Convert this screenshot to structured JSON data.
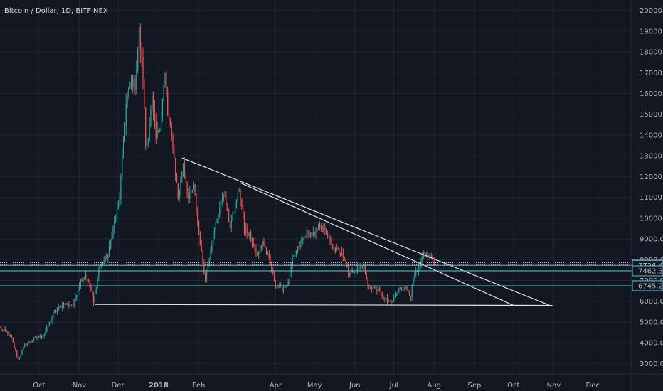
{
  "chart_data": {
    "type": "candlestick",
    "title": "Bitcoin / Dollar, 1D, BITFINEX",
    "ylim": [
      2500,
      20500
    ],
    "y_ticks": [
      3000,
      4000,
      5000,
      6000,
      7000,
      8000,
      9000,
      10000,
      11000,
      12000,
      13000,
      14000,
      15000,
      16000,
      17000,
      18000,
      19000,
      20000
    ],
    "y_tick_labels": [
      "3000.0",
      "4000.0",
      "5000.0",
      "6000.0",
      "7000.0",
      "8000.0",
      "9000.0",
      "10000.0",
      "11000.0",
      "12000.0",
      "13000.0",
      "14000.0",
      "15000.0",
      "16000.0",
      "17000.0",
      "18000.0",
      "19000.0",
      "20000.0"
    ],
    "x_start": "2017-09-01",
    "x_end": "2018-12-31",
    "x_ticks": [
      {
        "date": "2017-10-01",
        "label": "Oct",
        "bold": false
      },
      {
        "date": "2017-11-01",
        "label": "Nov",
        "bold": false
      },
      {
        "date": "2017-12-01",
        "label": "Dec",
        "bold": false
      },
      {
        "date": "2018-01-01",
        "label": "2018",
        "bold": true
      },
      {
        "date": "2018-02-01",
        "label": "Feb",
        "bold": false
      },
      {
        "date": "2018-04-01",
        "label": "Apr",
        "bold": false
      },
      {
        "date": "2018-05-01",
        "label": "May",
        "bold": false
      },
      {
        "date": "2018-06-01",
        "label": "Jun",
        "bold": false
      },
      {
        "date": "2018-07-01",
        "label": "Jul",
        "bold": false
      },
      {
        "date": "2018-08-01",
        "label": "Aug",
        "bold": false
      },
      {
        "date": "2018-09-01",
        "label": "Sep",
        "bold": false
      },
      {
        "date": "2018-10-01",
        "label": "Oct",
        "bold": false
      },
      {
        "date": "2018-11-01",
        "label": "Nov",
        "bold": false
      },
      {
        "date": "2018-12-01",
        "label": "Dec",
        "bold": false
      }
    ],
    "price_keypoints": [
      [
        "2017-09-01",
        4700
      ],
      [
        "2017-09-06",
        4500
      ],
      [
        "2017-09-10",
        4200
      ],
      [
        "2017-09-15",
        3200
      ],
      [
        "2017-09-20",
        3900
      ],
      [
        "2017-09-28",
        4200
      ],
      [
        "2017-10-05",
        4400
      ],
      [
        "2017-10-12",
        5400
      ],
      [
        "2017-10-20",
        5900
      ],
      [
        "2017-10-27",
        5800
      ],
      [
        "2017-11-02",
        7000
      ],
      [
        "2017-11-06",
        7300
      ],
      [
        "2017-11-10",
        6500
      ],
      [
        "2017-11-12",
        5900
      ],
      [
        "2017-11-16",
        7600
      ],
      [
        "2017-11-23",
        8200
      ],
      [
        "2017-11-28",
        9800
      ],
      [
        "2017-12-02",
        11000
      ],
      [
        "2017-12-07",
        15500
      ],
      [
        "2017-12-11",
        16600
      ],
      [
        "2017-12-14",
        16400
      ],
      [
        "2017-12-17",
        19000
      ],
      [
        "2017-12-20",
        16800
      ],
      [
        "2017-12-22",
        13500
      ],
      [
        "2017-12-24",
        14000
      ],
      [
        "2017-12-27",
        15700
      ],
      [
        "2017-12-30",
        13800
      ],
      [
        "2018-01-02",
        14500
      ],
      [
        "2018-01-06",
        16900
      ],
      [
        "2018-01-08",
        15000
      ],
      [
        "2018-01-12",
        13500
      ],
      [
        "2018-01-16",
        11000
      ],
      [
        "2018-01-20",
        12700
      ],
      [
        "2018-01-24",
        10900
      ],
      [
        "2018-01-28",
        11500
      ],
      [
        "2018-02-02",
        8800
      ],
      [
        "2018-02-06",
        7000
      ],
      [
        "2018-02-10",
        8500
      ],
      [
        "2018-02-15",
        10000
      ],
      [
        "2018-02-20",
        11200
      ],
      [
        "2018-02-25",
        9600
      ],
      [
        "2018-03-04",
        11400
      ],
      [
        "2018-03-08",
        9500
      ],
      [
        "2018-03-12",
        9200
      ],
      [
        "2018-03-18",
        8200
      ],
      [
        "2018-03-22",
        8900
      ],
      [
        "2018-03-26",
        8200
      ],
      [
        "2018-04-01",
        6800
      ],
      [
        "2018-04-06",
        6600
      ],
      [
        "2018-04-11",
        6900
      ],
      [
        "2018-04-14",
        8000
      ],
      [
        "2018-04-20",
        8800
      ],
      [
        "2018-04-25",
        9300
      ],
      [
        "2018-05-01",
        9200
      ],
      [
        "2018-05-05",
        9700
      ],
      [
        "2018-05-10",
        9300
      ],
      [
        "2018-05-15",
        8500
      ],
      [
        "2018-05-22",
        8400
      ],
      [
        "2018-05-28",
        7300
      ],
      [
        "2018-06-03",
        7600
      ],
      [
        "2018-06-08",
        7700
      ],
      [
        "2018-06-11",
        6700
      ],
      [
        "2018-06-18",
        6600
      ],
      [
        "2018-06-24",
        6100
      ],
      [
        "2018-06-29",
        5900
      ],
      [
        "2018-07-05",
        6600
      ],
      [
        "2018-07-09",
        6700
      ],
      [
        "2018-07-14",
        6300
      ],
      [
        "2018-07-17",
        7300
      ],
      [
        "2018-07-20",
        7400
      ],
      [
        "2018-07-24",
        8300
      ],
      [
        "2018-07-27",
        8200
      ],
      [
        "2018-07-30",
        8100
      ],
      [
        "2018-08-01",
        7745
      ]
    ],
    "trendlines": [
      {
        "from": [
          "2018-01-19",
          12900
        ],
        "to": [
          "2018-10-29",
          5800
        ]
      },
      {
        "from": [
          "2018-03-05",
          11700
        ],
        "to": [
          "2018-10-01",
          5800
        ]
      },
      {
        "from": [
          "2017-11-13",
          5850
        ],
        "to": [
          "2018-10-31",
          5800
        ]
      }
    ],
    "horizontal_lines": [
      {
        "value": 7860,
        "color": "#e0e3eb",
        "style": "dotted"
      },
      {
        "value": 7745.1,
        "color": "#e0e3eb",
        "style": "dotted"
      },
      {
        "value": 7726.4,
        "color": "#5fc4d8",
        "style": "solid"
      },
      {
        "value": 7462.3,
        "color": "#5fc4d8",
        "style": "solid"
      },
      {
        "value": 6745.2,
        "color": "#5fc4d8",
        "style": "solid"
      }
    ],
    "price_tags": [
      {
        "label": "7745.1",
        "value": 7745.1,
        "bg": "#ef5350",
        "fg": "#ffffff"
      },
      {
        "label": "7726.4",
        "value": 7726.4,
        "bg": "#131722",
        "fg": "#b2b5be"
      },
      {
        "label": "7462.3",
        "value": 7462.3,
        "bg": "#131722",
        "fg": "#b2b5be"
      },
      {
        "label": "6745.2",
        "value": 6745.2,
        "bg": "#131722",
        "fg": "#b2b5be"
      }
    ],
    "colors": {
      "background": "#131722",
      "grid": "#1f2430",
      "up": "#26a69a",
      "down": "#ef5350",
      "trendline": "#e0e3eb",
      "axis_text": "#b2b5be"
    }
  }
}
